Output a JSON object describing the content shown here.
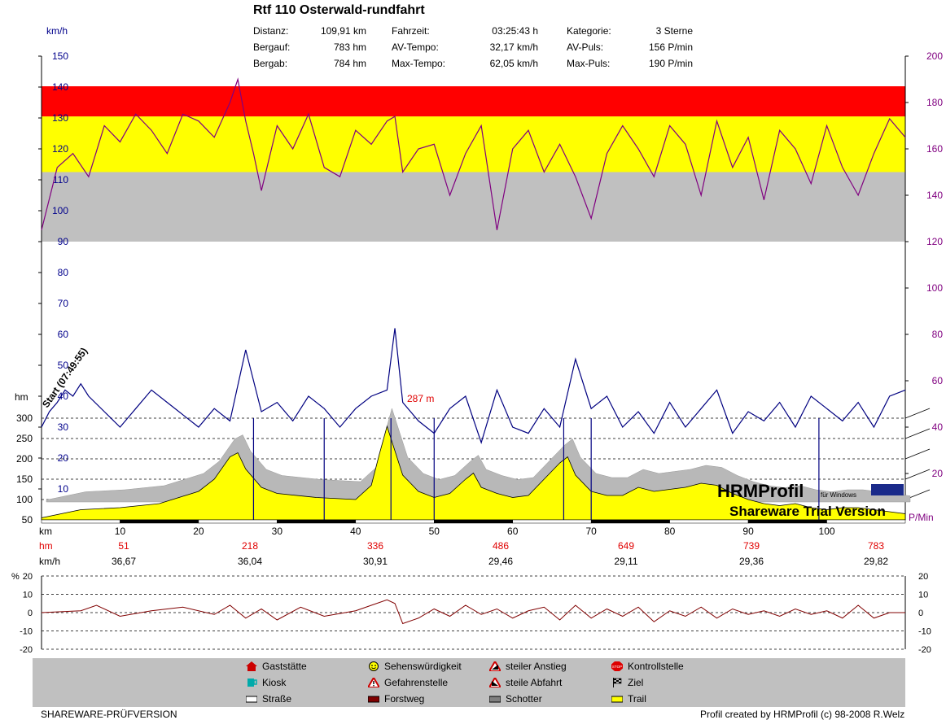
{
  "header": {
    "title": "Rtf 110 Osterwald-rundfahrt",
    "stats": [
      {
        "label": "Distanz:",
        "value": "109,91 km"
      },
      {
        "label": "Bergauf:",
        "value": "783 hm"
      },
      {
        "label": "Bergab:",
        "value": "784 hm"
      },
      {
        "label": "Fahrzeit:",
        "value": "03:25:43 h"
      },
      {
        "label": "AV-Tempo:",
        "value": "32,17 km/h"
      },
      {
        "label": "Max-Tempo:",
        "value": "62,05 km/h"
      },
      {
        "label": "Kategorie:",
        "value": "3 Sterne"
      },
      {
        "label": "AV-Puls:",
        "value": "156 P/min"
      },
      {
        "label": "Max-Puls:",
        "value": "190 P/min"
      }
    ]
  },
  "chart_data": [
    {
      "type": "line",
      "title": "Rtf 110 Osterwald-rundfahrt",
      "left_axis_unit": "km/h",
      "right_axis_unit": "P/Min",
      "elevation_axis_unit": "hm",
      "x_unit": "km",
      "xlim": [
        0,
        110
      ],
      "speed_ylim": [
        0,
        150
      ],
      "speed_ticks": [
        "10",
        "20",
        "30",
        "40",
        "50",
        "60",
        "70",
        "80",
        "90",
        "100",
        "110",
        "120",
        "130",
        "140",
        "150"
      ],
      "pulse_ylim": [
        0,
        200
      ],
      "pulse_ticks": [
        "20",
        "40",
        "60",
        "80",
        "100",
        "120",
        "140",
        "160",
        "180",
        "200"
      ],
      "hm_ticks": [
        "50",
        "100",
        "150",
        "200",
        "250",
        "300"
      ],
      "x_ticks": [
        "10",
        "20",
        "30",
        "40",
        "50",
        "60",
        "70",
        "80",
        "90",
        "100"
      ],
      "pulse_zones": [
        {
          "from": 120,
          "to": 150,
          "color": "#c0c0c0"
        },
        {
          "from": 150,
          "to": 174,
          "color": "#ffff00"
        },
        {
          "from": 174,
          "to": 187,
          "color": "#ff0000"
        }
      ],
      "annotations": {
        "start": "Start (07:49:55)",
        "peak": "287 m"
      },
      "watermark": {
        "brand": "HRMProfil",
        "sub": "für Windows",
        "trial": "Shareware Trial  Version"
      },
      "series": [
        {
          "name": "Puls",
          "color": "#800080",
          "x": [
            0,
            2,
            4,
            6,
            8,
            10,
            12,
            14,
            16,
            18,
            20,
            22,
            24,
            25,
            26,
            27,
            28,
            30,
            32,
            34,
            36,
            38,
            40,
            42,
            44,
            45,
            46,
            48,
            50,
            52,
            54,
            56,
            58,
            60,
            62,
            64,
            66,
            68,
            70,
            72,
            74,
            76,
            78,
            80,
            82,
            84,
            86,
            88,
            90,
            92,
            94,
            96,
            98,
            100,
            102,
            104,
            106,
            108,
            110
          ],
          "y": [
            125,
            152,
            158,
            148,
            170,
            163,
            175,
            168,
            158,
            175,
            172,
            165,
            180,
            190,
            172,
            158,
            142,
            170,
            160,
            175,
            152,
            148,
            168,
            162,
            172,
            174,
            150,
            160,
            162,
            140,
            158,
            170,
            125,
            160,
            168,
            150,
            162,
            148,
            130,
            158,
            170,
            160,
            148,
            170,
            162,
            140,
            172,
            152,
            165,
            138,
            168,
            160,
            145,
            170,
            152,
            140,
            158,
            173,
            165
          ]
        },
        {
          "name": "Tempo",
          "color": "#000080",
          "x": [
            0,
            1,
            2,
            3,
            4,
            5,
            6,
            8,
            10,
            12,
            14,
            16,
            18,
            20,
            22,
            24,
            26,
            28,
            30,
            32,
            34,
            36,
            38,
            40,
            42,
            44,
            45,
            46,
            48,
            50,
            52,
            54,
            56,
            58,
            60,
            62,
            64,
            66,
            68,
            70,
            72,
            74,
            76,
            78,
            80,
            82,
            84,
            86,
            88,
            90,
            92,
            94,
            96,
            98,
            100,
            102,
            104,
            106,
            108,
            110
          ],
          "y": [
            30,
            35,
            38,
            42,
            40,
            44,
            40,
            35,
            30,
            36,
            42,
            38,
            34,
            30,
            36,
            32,
            55,
            35,
            38,
            32,
            40,
            36,
            30,
            36,
            40,
            42,
            62,
            38,
            32,
            28,
            36,
            40,
            25,
            42,
            30,
            28,
            36,
            30,
            52,
            36,
            40,
            30,
            35,
            28,
            38,
            30,
            36,
            42,
            28,
            35,
            32,
            38,
            30,
            40,
            36,
            32,
            38,
            30,
            40,
            42
          ]
        },
        {
          "name": "Höhe",
          "color": "#ffff00",
          "x": [
            0,
            5,
            10,
            15,
            20,
            22,
            24,
            25,
            26,
            28,
            30,
            35,
            40,
            42,
            43,
            44,
            45,
            46,
            48,
            50,
            52,
            54,
            55,
            56,
            58,
            60,
            62,
            64,
            66,
            67,
            68,
            70,
            72,
            74,
            76,
            78,
            80,
            82,
            84,
            86,
            88,
            90,
            92,
            94,
            96,
            98,
            100,
            102,
            104,
            106,
            108,
            110
          ],
          "y": [
            55,
            75,
            80,
            90,
            120,
            150,
            205,
            215,
            175,
            130,
            115,
            105,
            100,
            135,
            210,
            280,
            220,
            160,
            120,
            105,
            115,
            150,
            165,
            130,
            115,
            105,
            110,
            150,
            190,
            205,
            160,
            120,
            110,
            110,
            130,
            120,
            125,
            130,
            140,
            135,
            115,
            100,
            90,
            85,
            90,
            80,
            75,
            80,
            80,
            75,
            70,
            65
          ]
        }
      ],
      "segment_averages": {
        "hm": [
          "51",
          "218",
          "336",
          "486",
          "649",
          "739",
          "783"
        ],
        "kmh": [
          "36,67",
          "36,04",
          "30,91",
          "29,46",
          "29,11",
          "29,36",
          "29,82"
        ]
      }
    },
    {
      "type": "line",
      "ylabel": "%",
      "ylim": [
        -20,
        20
      ],
      "ticks": [
        "20",
        "10",
        "0",
        "-10",
        "-20"
      ],
      "series": [
        {
          "name": "Steigung",
          "x": [
            0,
            5,
            7,
            10,
            14,
            18,
            22,
            24,
            26,
            28,
            30,
            33,
            36,
            40,
            42,
            44,
            45,
            46,
            48,
            50,
            52,
            54,
            56,
            58,
            60,
            62,
            64,
            66,
            68,
            70,
            72,
            74,
            76,
            78,
            80,
            82,
            84,
            86,
            88,
            90,
            92,
            94,
            96,
            98,
            100,
            102,
            104,
            106,
            108,
            110
          ],
          "y": [
            0,
            1,
            4,
            -2,
            1,
            3,
            -1,
            4,
            -3,
            2,
            -4,
            3,
            -2,
            1,
            4,
            7,
            5,
            -6,
            -3,
            2,
            -2,
            4,
            -1,
            2,
            -3,
            1,
            3,
            -4,
            4,
            -3,
            2,
            -2,
            3,
            -5,
            1,
            -2,
            3,
            -3,
            2,
            -1,
            1,
            -2,
            2,
            -1,
            1,
            -3,
            4,
            -3,
            0,
            0
          ]
        }
      ]
    }
  ],
  "legend": {
    "items": [
      {
        "label": "Gaststätte",
        "icon": "house-icon"
      },
      {
        "label": "Kiosk",
        "icon": "cup-icon"
      },
      {
        "label": "Straße",
        "icon": "road-swatch-icon"
      },
      {
        "label": "Sehenswürdigkeit",
        "icon": "smiley-icon"
      },
      {
        "label": "Gefahrenstelle",
        "icon": "warning-icon"
      },
      {
        "label": "Forstweg",
        "icon": "forest-swatch-icon"
      },
      {
        "label": "steiler Anstieg",
        "icon": "steep-up-icon"
      },
      {
        "label": "steile Abfahrt",
        "icon": "steep-down-icon"
      },
      {
        "label": "Schotter",
        "icon": "gravel-swatch-icon"
      },
      {
        "label": "Kontrollstelle",
        "icon": "stop-icon"
      },
      {
        "label": "Ziel",
        "icon": "finish-flag-icon"
      },
      {
        "label": "Trail",
        "icon": "trail-swatch-icon"
      }
    ]
  },
  "footer": {
    "left": "SHAREWARE-PRÜFVERSION",
    "right": "Profil created by HRMProfil (c) 98-2008 R.Welz"
  },
  "colors": {
    "speed": "#000080",
    "pulse": "#800080",
    "elevation": "#ffff00",
    "gravel": "#b8b8b8",
    "grid": "#000000"
  }
}
